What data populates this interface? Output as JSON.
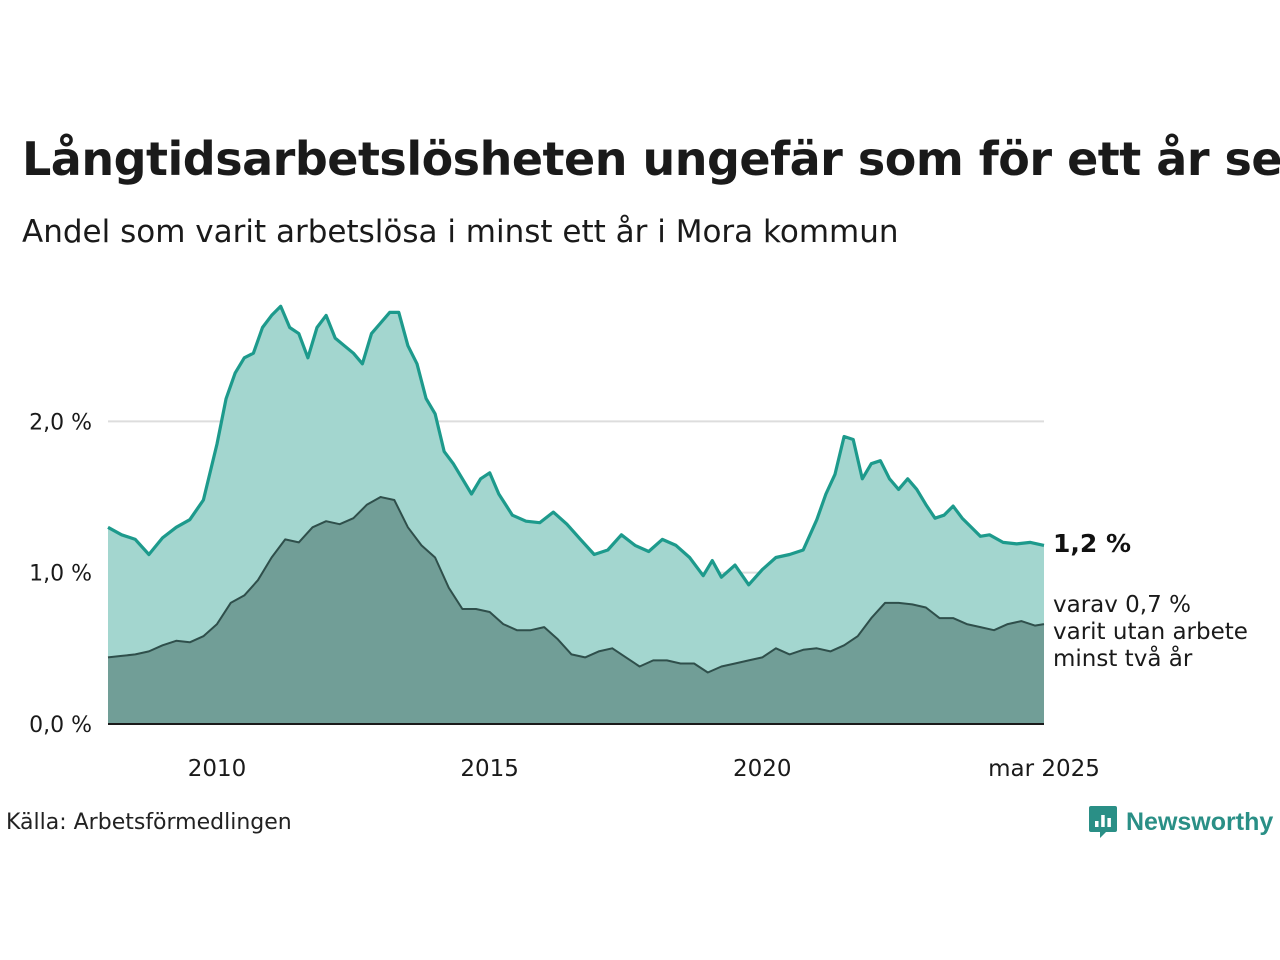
{
  "header": {
    "title": "Långtidsarbetslösheten ungefär som för ett år sen",
    "subtitle": "Andel som varit arbetslösa i minst ett år i Mora kommun"
  },
  "footer": {
    "source": "Källa: Arbetsförmedlingen",
    "brand": "Newsworthy"
  },
  "colors": {
    "total_line": "#1d9a8c",
    "total_fill": "#a3d6cf",
    "sub_line": "#2f4f4b",
    "sub_fill": "#719e97",
    "grid": "#dddddd",
    "brand": "#2a8f86"
  },
  "chart_data": {
    "type": "area",
    "x_range": [
      "2008-01",
      "2025-03"
    ],
    "ylim": [
      0,
      3
    ],
    "y_ticks": [
      {
        "value": 0,
        "label": "0,0 %"
      },
      {
        "value": 1,
        "label": "1,0 %"
      },
      {
        "value": 2,
        "label": "2,0 %"
      }
    ],
    "x_ticks": [
      {
        "date": "2010-01",
        "label": "2010"
      },
      {
        "date": "2015-01",
        "label": "2015"
      },
      {
        "date": "2020-01",
        "label": "2020"
      },
      {
        "date": "2025-03",
        "label": "mar 2025"
      }
    ],
    "grid": true,
    "series": [
      {
        "points": [
          [
            "2008-01",
            1.3
          ],
          [
            "2008-04",
            1.25
          ],
          [
            "2008-07",
            1.22
          ],
          [
            "2008-10",
            1.12
          ],
          [
            "2009-01",
            1.23
          ],
          [
            "2009-04",
            1.3
          ],
          [
            "2009-07",
            1.35
          ],
          [
            "2009-10",
            1.48
          ],
          [
            "2010-01",
            1.85
          ],
          [
            "2010-03",
            2.15
          ],
          [
            "2010-05",
            2.32
          ],
          [
            "2010-07",
            2.42
          ],
          [
            "2010-09",
            2.45
          ],
          [
            "2010-11",
            2.62
          ],
          [
            "2011-01",
            2.7
          ],
          [
            "2011-03",
            2.76
          ],
          [
            "2011-05",
            2.62
          ],
          [
            "2011-07",
            2.58
          ],
          [
            "2011-09",
            2.42
          ],
          [
            "2011-11",
            2.62
          ],
          [
            "2012-01",
            2.7
          ],
          [
            "2012-03",
            2.55
          ],
          [
            "2012-05",
            2.5
          ],
          [
            "2012-07",
            2.45
          ],
          [
            "2012-09",
            2.38
          ],
          [
            "2012-11",
            2.58
          ],
          [
            "2013-01",
            2.65
          ],
          [
            "2013-03",
            2.72
          ],
          [
            "2013-05",
            2.72
          ],
          [
            "2013-07",
            2.5
          ],
          [
            "2013-09",
            2.38
          ],
          [
            "2013-11",
            2.15
          ],
          [
            "2014-01",
            2.05
          ],
          [
            "2014-03",
            1.8
          ],
          [
            "2014-05",
            1.72
          ],
          [
            "2014-07",
            1.62
          ],
          [
            "2014-09",
            1.52
          ],
          [
            "2014-11",
            1.62
          ],
          [
            "2015-01",
            1.66
          ],
          [
            "2015-03",
            1.52
          ],
          [
            "2015-06",
            1.38
          ],
          [
            "2015-09",
            1.34
          ],
          [
            "2015-12",
            1.33
          ],
          [
            "2016-03",
            1.4
          ],
          [
            "2016-06",
            1.32
          ],
          [
            "2016-09",
            1.22
          ],
          [
            "2016-12",
            1.12
          ],
          [
            "2017-03",
            1.15
          ],
          [
            "2017-06",
            1.25
          ],
          [
            "2017-09",
            1.18
          ],
          [
            "2017-12",
            1.14
          ],
          [
            "2018-03",
            1.22
          ],
          [
            "2018-06",
            1.18
          ],
          [
            "2018-09",
            1.1
          ],
          [
            "2018-12",
            0.98
          ],
          [
            "2019-02",
            1.08
          ],
          [
            "2019-04",
            0.97
          ],
          [
            "2019-07",
            1.05
          ],
          [
            "2019-10",
            0.92
          ],
          [
            "2020-01",
            1.02
          ],
          [
            "2020-04",
            1.1
          ],
          [
            "2020-07",
            1.12
          ],
          [
            "2020-10",
            1.15
          ],
          [
            "2021-01",
            1.35
          ],
          [
            "2021-03",
            1.52
          ],
          [
            "2021-05",
            1.65
          ],
          [
            "2021-07",
            1.9
          ],
          [
            "2021-09",
            1.88
          ],
          [
            "2021-11",
            1.62
          ],
          [
            "2022-01",
            1.72
          ],
          [
            "2022-03",
            1.74
          ],
          [
            "2022-05",
            1.62
          ],
          [
            "2022-07",
            1.55
          ],
          [
            "2022-09",
            1.62
          ],
          [
            "2022-11",
            1.55
          ],
          [
            "2023-01",
            1.45
          ],
          [
            "2023-03",
            1.36
          ],
          [
            "2023-05",
            1.38
          ],
          [
            "2023-07",
            1.44
          ],
          [
            "2023-09",
            1.36
          ],
          [
            "2023-11",
            1.3
          ],
          [
            "2024-01",
            1.24
          ],
          [
            "2024-03",
            1.25
          ],
          [
            "2024-06",
            1.2
          ],
          [
            "2024-09",
            1.19
          ],
          [
            "2024-12",
            1.2
          ],
          [
            "2025-03",
            1.18
          ]
        ]
      },
      {
        "points": [
          [
            "2008-01",
            0.44
          ],
          [
            "2008-04",
            0.45
          ],
          [
            "2008-07",
            0.46
          ],
          [
            "2008-10",
            0.48
          ],
          [
            "2009-01",
            0.52
          ],
          [
            "2009-04",
            0.55
          ],
          [
            "2009-07",
            0.54
          ],
          [
            "2009-10",
            0.58
          ],
          [
            "2010-01",
            0.66
          ],
          [
            "2010-04",
            0.8
          ],
          [
            "2010-07",
            0.85
          ],
          [
            "2010-10",
            0.95
          ],
          [
            "2011-01",
            1.1
          ],
          [
            "2011-04",
            1.22
          ],
          [
            "2011-07",
            1.2
          ],
          [
            "2011-10",
            1.3
          ],
          [
            "2012-01",
            1.34
          ],
          [
            "2012-04",
            1.32
          ],
          [
            "2012-07",
            1.36
          ],
          [
            "2012-10",
            1.45
          ],
          [
            "2013-01",
            1.5
          ],
          [
            "2013-04",
            1.48
          ],
          [
            "2013-07",
            1.3
          ],
          [
            "2013-10",
            1.18
          ],
          [
            "2014-01",
            1.1
          ],
          [
            "2014-04",
            0.9
          ],
          [
            "2014-07",
            0.76
          ],
          [
            "2014-10",
            0.76
          ],
          [
            "2015-01",
            0.74
          ],
          [
            "2015-04",
            0.66
          ],
          [
            "2015-07",
            0.62
          ],
          [
            "2015-10",
            0.62
          ],
          [
            "2016-01",
            0.64
          ],
          [
            "2016-04",
            0.56
          ],
          [
            "2016-07",
            0.46
          ],
          [
            "2016-10",
            0.44
          ],
          [
            "2017-01",
            0.48
          ],
          [
            "2017-04",
            0.5
          ],
          [
            "2017-07",
            0.44
          ],
          [
            "2017-10",
            0.38
          ],
          [
            "2018-01",
            0.42
          ],
          [
            "2018-04",
            0.42
          ],
          [
            "2018-07",
            0.4
          ],
          [
            "2018-10",
            0.4
          ],
          [
            "2019-01",
            0.34
          ],
          [
            "2019-04",
            0.38
          ],
          [
            "2019-07",
            0.4
          ],
          [
            "2019-10",
            0.42
          ],
          [
            "2020-01",
            0.44
          ],
          [
            "2020-04",
            0.5
          ],
          [
            "2020-07",
            0.46
          ],
          [
            "2020-10",
            0.49
          ],
          [
            "2021-01",
            0.5
          ],
          [
            "2021-04",
            0.48
          ],
          [
            "2021-07",
            0.52
          ],
          [
            "2021-10",
            0.58
          ],
          [
            "2022-01",
            0.7
          ],
          [
            "2022-04",
            0.8
          ],
          [
            "2022-07",
            0.8
          ],
          [
            "2022-10",
            0.79
          ],
          [
            "2023-01",
            0.77
          ],
          [
            "2023-04",
            0.7
          ],
          [
            "2023-07",
            0.7
          ],
          [
            "2023-10",
            0.66
          ],
          [
            "2024-01",
            0.64
          ],
          [
            "2024-04",
            0.62
          ],
          [
            "2024-07",
            0.66
          ],
          [
            "2024-10",
            0.68
          ],
          [
            "2025-01",
            0.65
          ],
          [
            "2025-03",
            0.66
          ]
        ]
      }
    ],
    "end_labels": {
      "total": "1,2 %",
      "sub_lines": [
        "varav 0,7 %",
        "varit utan arbete",
        "minst två år"
      ]
    }
  }
}
